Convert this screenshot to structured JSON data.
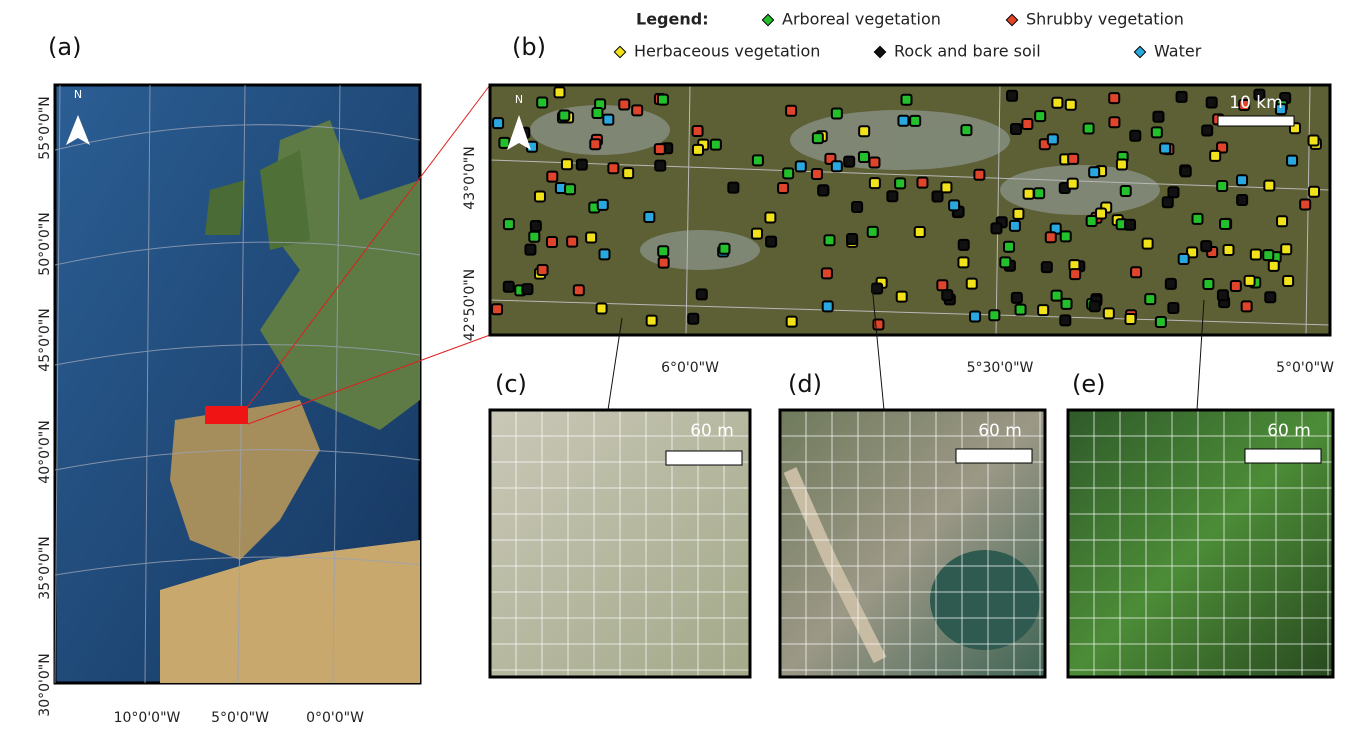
{
  "panels": {
    "a": "(a)",
    "b": "(b)",
    "c": "(c)",
    "d": "(d)",
    "e": "(e)"
  },
  "legend": {
    "title": "Legend:",
    "items": [
      {
        "label": "Arboreal vegetation",
        "color": "#22c02a"
      },
      {
        "label": "Shrubby vegetation",
        "color": "#e0442a"
      },
      {
        "label": "Herbaceous vegetation",
        "color": "#f2e21a"
      },
      {
        "label": "Rock and bare soil",
        "color": "#111111"
      },
      {
        "label": "Water",
        "color": "#29a8e0"
      }
    ]
  },
  "map_a": {
    "y_labels": [
      "55°0'0\"N",
      "50°0'0\"N",
      "45°0'0\"N",
      "40°0'0\"N",
      "35°0'0\"N",
      "30°0'0\"N"
    ],
    "x_labels": [
      "10°0'0\"W",
      "5°0'0\"W",
      "0°0'0\"W"
    ],
    "north": "N"
  },
  "map_b": {
    "y_labels": [
      "43°0'0\"N",
      "42°50'0\"N"
    ],
    "x_labels": [
      "6°0'0\"W",
      "5°30'0\"W",
      "5°0'0\"W"
    ],
    "north": "N",
    "scale_bar": "10 km"
  },
  "map_c": {
    "scale_bar": "60 m"
  },
  "map_d": {
    "scale_bar": "60 m"
  },
  "map_e": {
    "scale_bar": "60 m"
  }
}
